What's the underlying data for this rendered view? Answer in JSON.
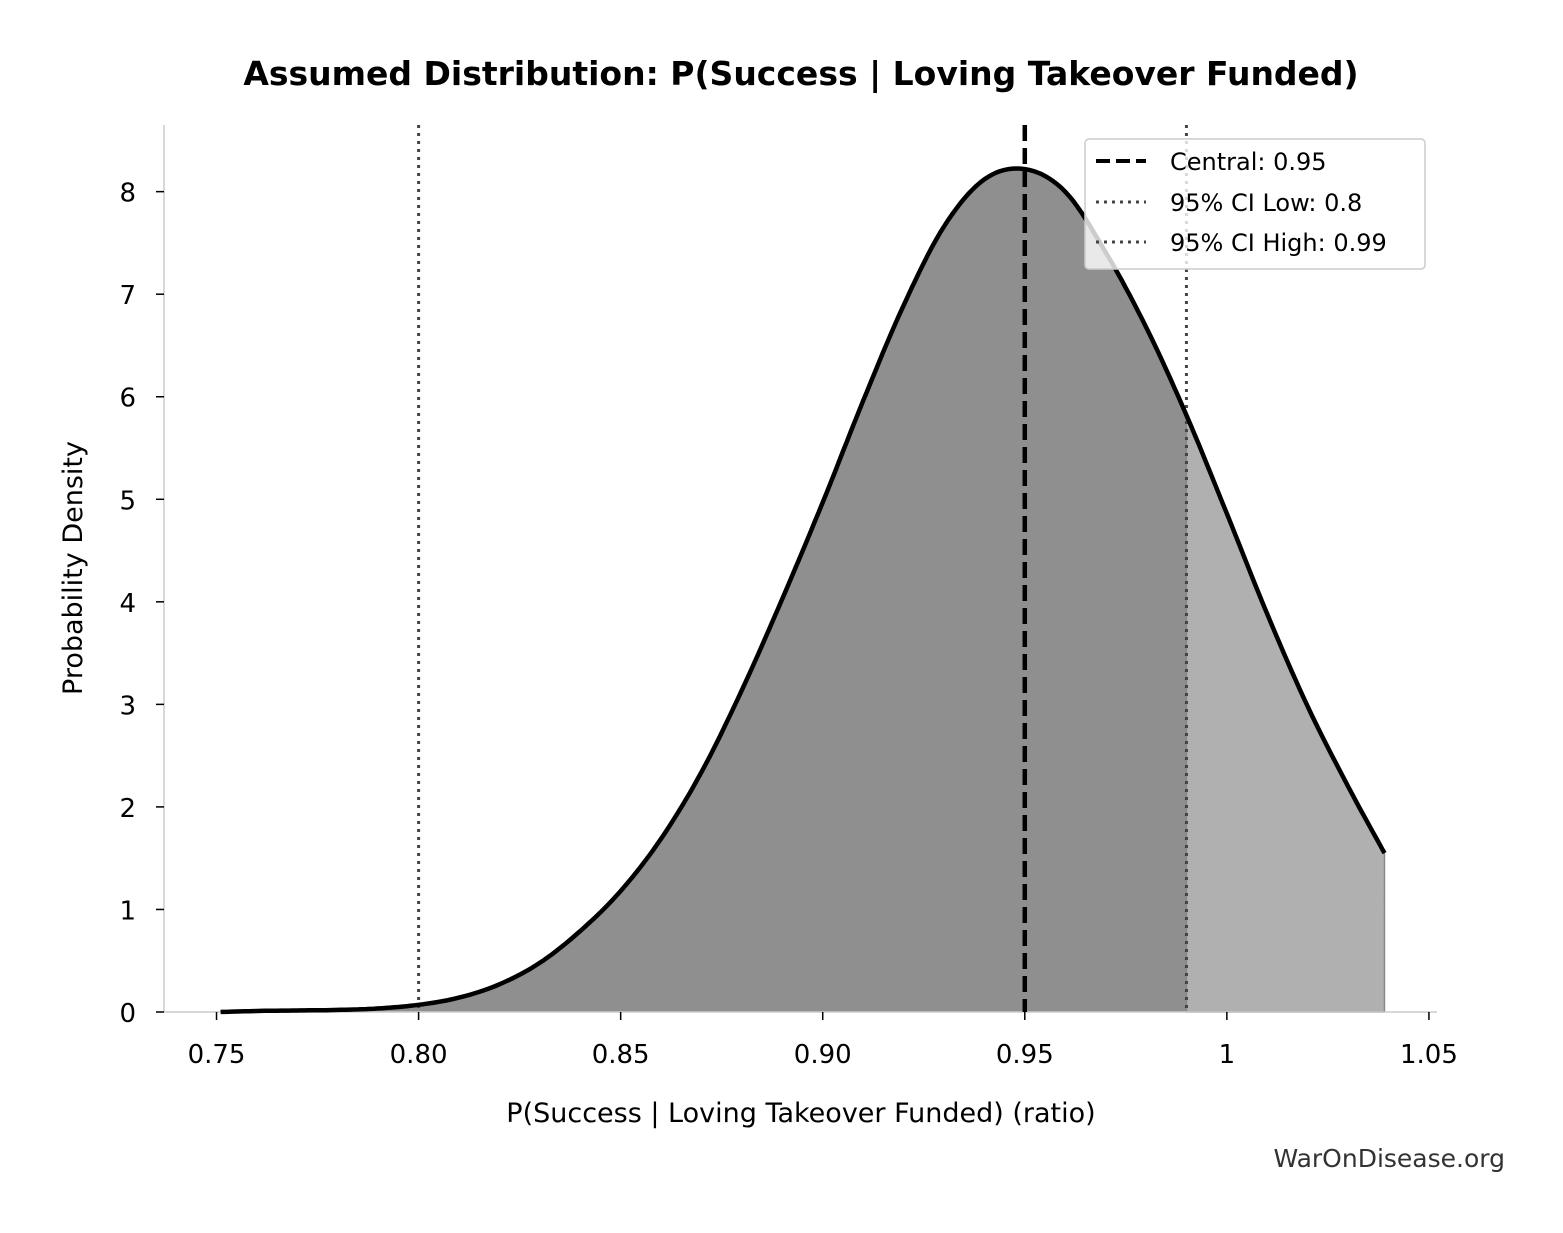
{
  "chart_data": {
    "type": "area",
    "title": "Assumed Distribution: P(Success | Loving Takeover Funded)",
    "xlabel": "P(Success | Loving Takeover Funded) (ratio)",
    "ylabel": "Probability Density",
    "xlim": [
      0.737,
      1.052
    ],
    "ylim": [
      0,
      8.65
    ],
    "x_ticks": [
      0.75,
      0.8,
      0.85,
      0.9,
      0.95,
      1.0,
      1.05
    ],
    "x_tick_labels": [
      "0.75",
      "0.80",
      "0.85",
      "0.90",
      "0.95",
      "1",
      "1.05"
    ],
    "y_ticks": [
      0,
      1,
      2,
      3,
      4,
      5,
      6,
      7,
      8
    ],
    "y_tick_labels": [
      "0",
      "1",
      "2",
      "3",
      "4",
      "5",
      "6",
      "7",
      "8"
    ],
    "series": [
      {
        "kind": "density",
        "x": [
          0.751,
          0.76,
          0.77,
          0.78,
          0.79,
          0.8,
          0.81,
          0.82,
          0.83,
          0.84,
          0.85,
          0.86,
          0.87,
          0.88,
          0.89,
          0.9,
          0.91,
          0.92,
          0.93,
          0.94,
          0.95,
          0.96,
          0.97,
          0.98,
          0.99,
          1.0,
          1.01,
          1.02,
          1.03,
          1.039
        ],
        "y": [
          0.0,
          0.01,
          0.015,
          0.02,
          0.035,
          0.07,
          0.14,
          0.27,
          0.48,
          0.79,
          1.18,
          1.69,
          2.34,
          3.14,
          4.03,
          4.97,
          5.96,
          6.89,
          7.66,
          8.12,
          8.22,
          8.0,
          7.41,
          6.68,
          5.82,
          4.86,
          3.88,
          2.98,
          2.2,
          1.55
        ]
      }
    ],
    "fill_split_x": 0.99,
    "vlines": [
      {
        "label": "Central: 0.95",
        "x": 0.95,
        "style": "dashed"
      },
      {
        "label": "95% CI Low: 0.8",
        "x": 0.8,
        "style": "dotted"
      },
      {
        "label": "95% CI High: 0.99",
        "x": 0.99,
        "style": "dotted"
      }
    ],
    "legend_position": "top-right",
    "grid": false
  },
  "colors": {
    "fill_main": "#8f8f8f",
    "fill_tail": "#b0b0b0",
    "curve": "#000000",
    "central_line": "#000000",
    "ci_line": "#444444",
    "axis": "#cccccc"
  },
  "watermark": "WarOnDisease.org"
}
